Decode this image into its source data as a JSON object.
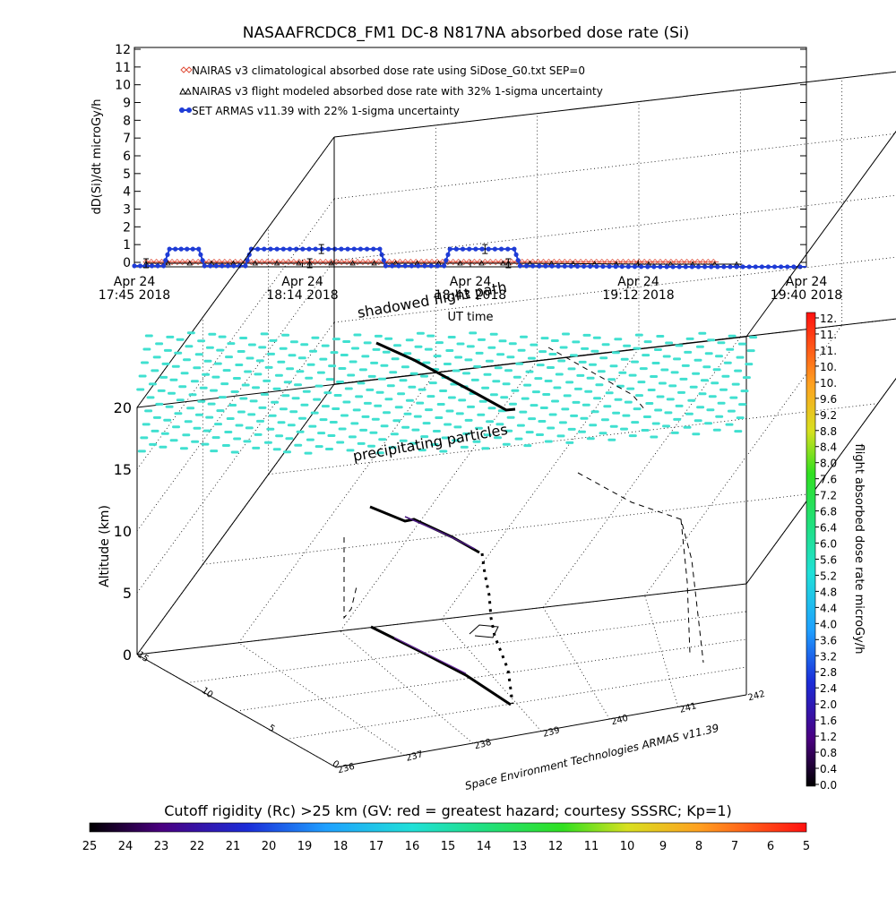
{
  "chart_data": [
    {
      "type": "line",
      "title": "NASAAFRCDC8_FM1 DC-8    N817NA absorbed dose rate (Si)",
      "ylabel": "dD(Si)/dt microGy/h",
      "xlabel": "UT time",
      "ylim": [
        0,
        12
      ],
      "yticks": [
        "0",
        "1",
        "2",
        "3",
        "4",
        "5",
        "6",
        "7",
        "8",
        "9",
        "10",
        "11",
        "12"
      ],
      "xticks": [
        {
          "line1": "Apr 24",
          "line2": "17:45 2018"
        },
        {
          "line1": "Apr 24",
          "line2": "18:14 2018"
        },
        {
          "line1": "Apr 24",
          "line2": "18:43 2018"
        },
        {
          "line1": "Apr 24",
          "line2": "19:12 2018"
        },
        {
          "line1": "Apr 24",
          "line2": "19:40 2018"
        }
      ],
      "x_unit": "minutes after 17:45",
      "xlim": [
        0,
        115
      ],
      "legend_placement": "top-left",
      "series": [
        {
          "name": "NAIRAS v3 climatological absorbed dose rate using SiDose_G0.txt SEP=0",
          "color": "#e0503c",
          "marker": "diamond",
          "points": [
            [
              2,
              0.02
            ],
            [
              10,
              0.02
            ],
            [
              20,
              0.02
            ],
            [
              30,
              0.02
            ],
            [
              40,
              0.02
            ],
            [
              50,
              0.02
            ],
            [
              60,
              0.02
            ],
            [
              70,
              0.02
            ],
            [
              80,
              0.02
            ],
            [
              90,
              0.02
            ],
            [
              100,
              0.02
            ]
          ]
        },
        {
          "name": "NAIRAS v3 flight modeled absorbed dose rate with 32% 1-sigma uncertainty",
          "color": "#000000",
          "marker": "triangle",
          "points": [
            [
              2,
              -0.05
            ],
            [
              30,
              -0.05
            ],
            [
              64,
              -0.05
            ],
            [
              88,
              -0.1
            ],
            [
              104,
              -0.1
            ]
          ]
        },
        {
          "name": "SET ARMAS v11.39 with 22% 1-sigma uncertainty",
          "color": "#1f3cd6",
          "marker": "circle",
          "points": [
            [
              0,
              -0.2
            ],
            [
              5,
              -0.2
            ],
            [
              6,
              0.75
            ],
            [
              11,
              0.75
            ],
            [
              12,
              -0.2
            ],
            [
              19,
              -0.2
            ],
            [
              20,
              0.75
            ],
            [
              42,
              0.75
            ],
            [
              43,
              -0.2
            ],
            [
              53,
              -0.2
            ],
            [
              54,
              0.75
            ],
            [
              65,
              0.75
            ],
            [
              66,
              -0.2
            ],
            [
              90,
              -0.25
            ],
            [
              115,
              -0.25
            ]
          ]
        }
      ]
    },
    {
      "type": "scatter",
      "title": "",
      "zlabel": "Altitude (km)",
      "zticks": [
        "0",
        "5",
        "10",
        "15",
        "20"
      ],
      "yticks_depth": [
        "0",
        "5",
        "10",
        "15"
      ],
      "xticks_axis": [
        "236",
        "237",
        "238",
        "239",
        "240",
        "241",
        "242"
      ],
      "annotations": [
        "shadowed flight path",
        "precipitating particles"
      ],
      "credit": "Space Environment Technologies ARMAS v11.39",
      "particle_color": "#40e0d0",
      "path_color": "#000000"
    }
  ],
  "colorbar_right": {
    "label": "flight absorbed dose rate microGy/h",
    "ticks": [
      "0.0",
      "0.4",
      "0.8",
      "1.2",
      "1.6",
      "2.0",
      "2.4",
      "2.8",
      "3.2",
      "3.6",
      "4.0",
      "4.4",
      "4.8",
      "5.2",
      "5.6",
      "6.0",
      "6.4",
      "6.8",
      "7.2",
      "7.6",
      "8.0",
      "8.4",
      "8.8",
      "9.2",
      "9.6",
      "10.",
      "10.",
      "11.",
      "11.",
      "12."
    ]
  },
  "colorbar_bottom": {
    "label": "Cutoff rigidity (Rc) >25 km (GV: red = greatest hazard; courtesy SSSRC; Kp=1)",
    "ticks": [
      "25",
      "24",
      "23",
      "22",
      "21",
      "20",
      "19",
      "18",
      "17",
      "16",
      "15",
      "14",
      "13",
      "12",
      "11",
      "10",
      "9",
      "8",
      "7",
      "6",
      "5"
    ]
  }
}
